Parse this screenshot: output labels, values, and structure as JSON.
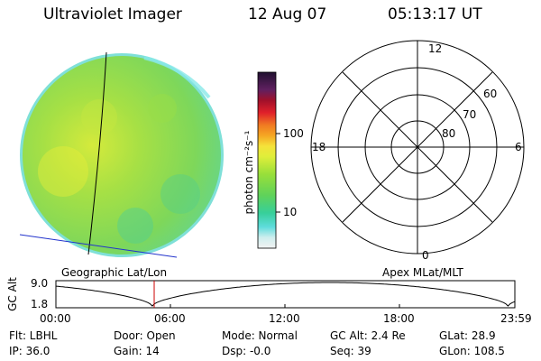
{
  "header": {
    "instrument": "Ultraviolet Imager",
    "date": "12 Aug 07",
    "time": "05:13:17 UT"
  },
  "colorbar": {
    "unit_label": "photon cm⁻²s⁻¹",
    "tick_100": "100",
    "tick_10": "10"
  },
  "polar": {
    "label_top": "12",
    "label_left": "18",
    "label_right": "6",
    "label_bottom": "0",
    "ring_60": "60",
    "ring_70": "70",
    "ring_80": "80"
  },
  "plot": {
    "left_caption": "Geographic Lat/Lon",
    "right_caption": "Apex MLat/MLT",
    "ylabel": "GC Alt",
    "ytick_top": "9.0",
    "ytick_bottom": "1.8",
    "xticks": [
      "00:00",
      "06:00",
      "12:00",
      "18:00",
      "23:59"
    ],
    "marker_time": "05:13:17"
  },
  "info": {
    "flt": "Flt: LBHL",
    "ip": "IP: 36.0",
    "door": "Door: Open",
    "gain": "Gain: 14",
    "mode": "Mode: Normal",
    "dsp": "Dsp:    -0.0",
    "gcalt": "GC Alt: 2.4 Re",
    "seq": "Seq: 39",
    "glat": "GLat:  28.9",
    "glon": "GLon: 108.5"
  },
  "colors": {
    "earth_base": "#8ad94f",
    "earth_warm": "#d8ea3a",
    "earth_cool": "#5fd58a",
    "limb": "#7fe6e6",
    "orbit_line": "#000000",
    "marker": "#cc0000",
    "lat_line": "#2233cc"
  }
}
